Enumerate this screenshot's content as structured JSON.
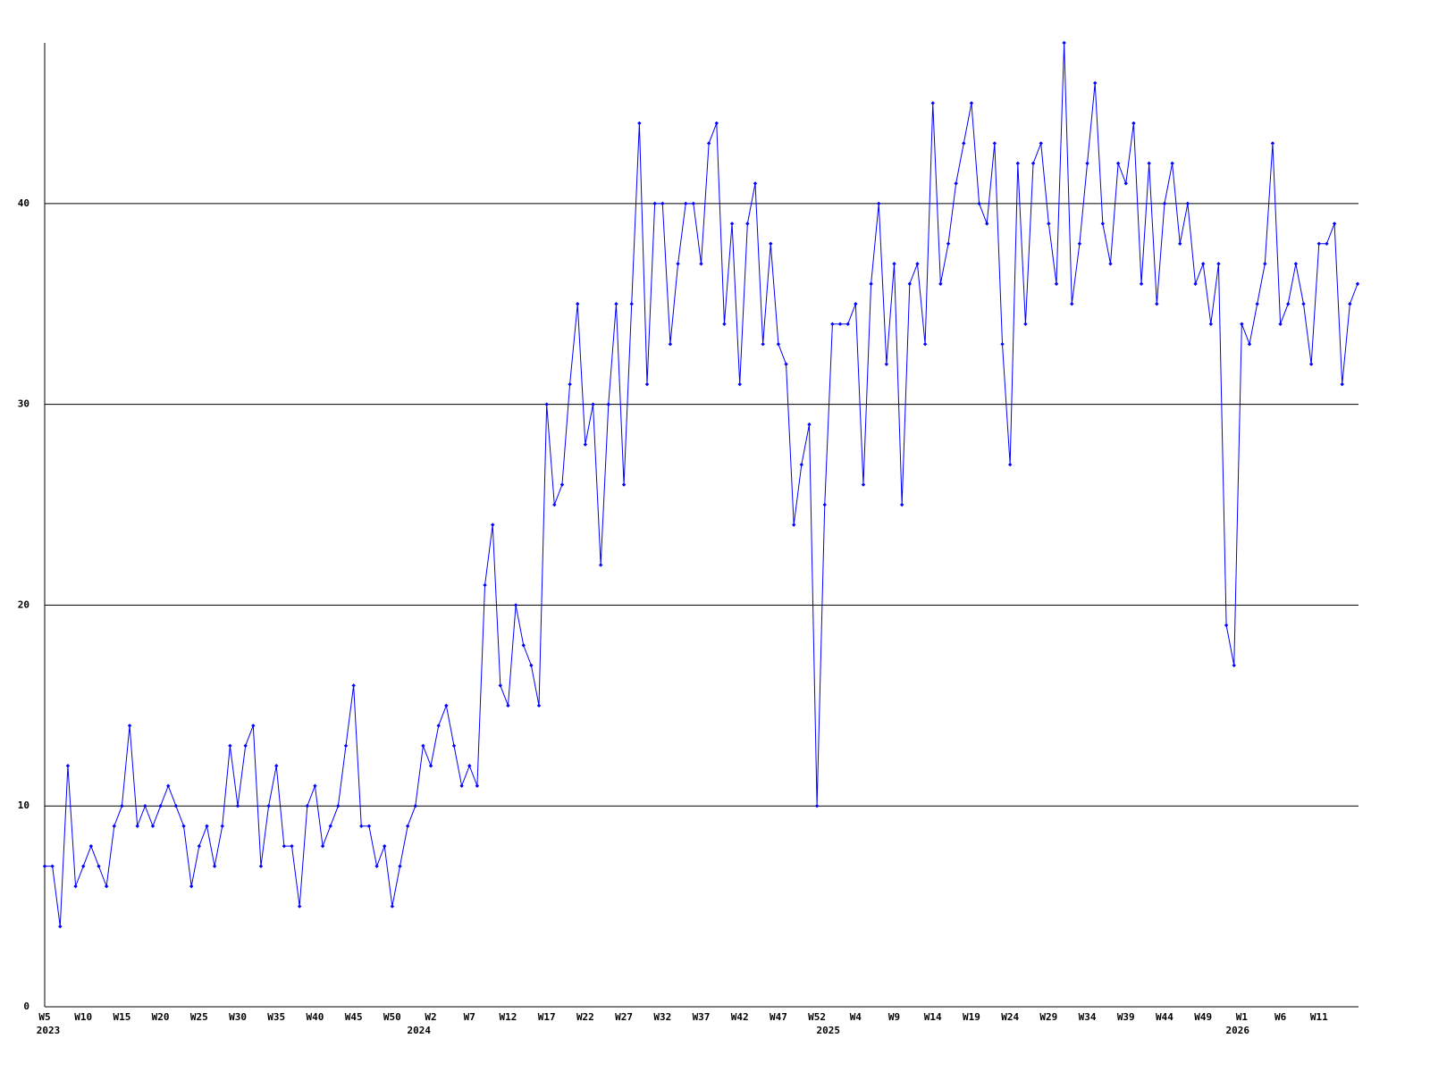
{
  "chart_data": {
    "type": "line",
    "color": "#0000ff",
    "grid": true,
    "ylim": [
      0,
      48
    ],
    "yticks": [
      0,
      10,
      20,
      30,
      40
    ],
    "categories": [
      "W5",
      null,
      null,
      null,
      null,
      "W10",
      null,
      null,
      null,
      null,
      "W15",
      null,
      null,
      null,
      null,
      "W20",
      null,
      null,
      null,
      null,
      "W25",
      null,
      null,
      null,
      null,
      "W30",
      null,
      null,
      null,
      null,
      "W35",
      null,
      null,
      null,
      null,
      "W40",
      null,
      null,
      null,
      null,
      "W45",
      null,
      null,
      null,
      null,
      "W50",
      null,
      null,
      null,
      null,
      "W2",
      null,
      null,
      null,
      null,
      "W7",
      null,
      null,
      null,
      null,
      "W12",
      null,
      null,
      null,
      null,
      "W17",
      null,
      null,
      null,
      null,
      "W22",
      null,
      null,
      null,
      null,
      "W27",
      null,
      null,
      null,
      null,
      "W32",
      null,
      null,
      null,
      null,
      "W37",
      null,
      null,
      null,
      null,
      "W42",
      null,
      null,
      null,
      null,
      "W47",
      null,
      null,
      null,
      null,
      "W52",
      null,
      null,
      null,
      null,
      "W4",
      null,
      null,
      null,
      null,
      "W9",
      null,
      null,
      null,
      null,
      "W14",
      null,
      null,
      null,
      null,
      "W19",
      null,
      null,
      null,
      null,
      "W24",
      null,
      null,
      null,
      null,
      "W29",
      null,
      null,
      null,
      null,
      "W34",
      null,
      null,
      null,
      null,
      "W39",
      null,
      null,
      null,
      null,
      "W44",
      null,
      null,
      null,
      null,
      "W49",
      null,
      null,
      null,
      null,
      "W1",
      null,
      null,
      null,
      null,
      "W6",
      null,
      null,
      null,
      null,
      "W11",
      null,
      null,
      null,
      null,
      null
    ],
    "category_years": [
      "2023",
      null,
      null,
      null,
      null,
      null,
      null,
      null,
      null,
      null,
      null,
      null,
      null,
      null,
      null,
      null,
      null,
      null,
      null,
      null,
      null,
      null,
      null,
      null,
      null,
      null,
      null,
      null,
      null,
      null,
      null,
      null,
      null,
      null,
      null,
      null,
      null,
      null,
      null,
      null,
      null,
      null,
      null,
      null,
      null,
      null,
      null,
      null,
      "2024",
      null,
      null,
      null,
      null,
      null,
      null,
      null,
      null,
      null,
      null,
      null,
      null,
      null,
      null,
      null,
      null,
      null,
      null,
      null,
      null,
      null,
      null,
      null,
      null,
      null,
      null,
      null,
      null,
      null,
      null,
      null,
      null,
      null,
      null,
      null,
      null,
      null,
      null,
      null,
      null,
      null,
      null,
      null,
      null,
      null,
      null,
      null,
      null,
      null,
      null,
      null,
      null,
      "2025",
      null,
      null,
      null,
      null,
      null,
      null,
      null,
      null,
      null,
      null,
      null,
      null,
      null,
      null,
      null,
      null,
      null,
      null,
      null,
      null,
      null,
      null,
      null,
      null,
      null,
      null,
      null,
      null,
      null,
      null,
      null,
      null,
      null,
      null,
      null,
      null,
      null,
      null,
      null,
      null,
      null,
      null,
      null,
      null,
      null,
      null,
      null,
      null,
      null,
      null,
      null,
      null,
      "2026",
      null,
      null,
      null,
      null,
      null,
      null,
      null,
      null,
      null,
      null,
      null,
      null,
      null,
      null,
      null,
      null
    ],
    "values": [
      7,
      7,
      4,
      12,
      6,
      7,
      8,
      7,
      6,
      9,
      10,
      14,
      9,
      10,
      9,
      10,
      11,
      10,
      9,
      6,
      8,
      9,
      7,
      9,
      13,
      10,
      13,
      14,
      7,
      10,
      12,
      8,
      8,
      5,
      10,
      11,
      8,
      9,
      10,
      13,
      16,
      9,
      9,
      7,
      8,
      5,
      7,
      9,
      10,
      13,
      12,
      14,
      15,
      13,
      11,
      12,
      11,
      21,
      24,
      16,
      15,
      20,
      18,
      17,
      15,
      30,
      25,
      26,
      31,
      35,
      28,
      30,
      22,
      30,
      35,
      26,
      35,
      44,
      31,
      40,
      40,
      33,
      37,
      40,
      40,
      37,
      43,
      44,
      34,
      39,
      31,
      39,
      41,
      33,
      38,
      33,
      32,
      24,
      27,
      29,
      10,
      25,
      34,
      34,
      34,
      35,
      26,
      36,
      40,
      32,
      37,
      25,
      36,
      37,
      33,
      45,
      36,
      38,
      41,
      43,
      45,
      40,
      39,
      43,
      33,
      27,
      42,
      34,
      42,
      43,
      39,
      36,
      48,
      35,
      38,
      42,
      46,
      39,
      37,
      42,
      41,
      44,
      36,
      42,
      35,
      40,
      42,
      38,
      40,
      36,
      37,
      34,
      37,
      19,
      17,
      34,
      33,
      35,
      37,
      43,
      34,
      35,
      37,
      35,
      32,
      38,
      38,
      39,
      31,
      35,
      36
    ]
  }
}
